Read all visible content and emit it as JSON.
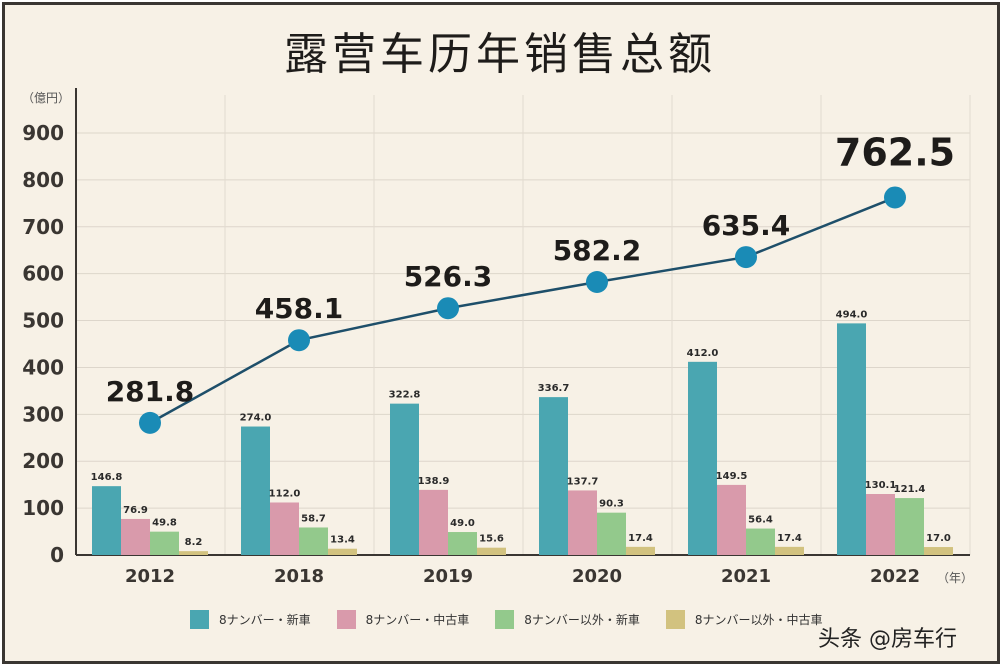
{
  "chart_data": {
    "type": "bar",
    "title": "露营车历年销售总额",
    "ylabel": "（億円）",
    "xlabel": "（年）",
    "ylim": [
      0,
      900
    ],
    "yticks": [
      0,
      100,
      200,
      300,
      400,
      500,
      600,
      700,
      800,
      900
    ],
    "grid": true,
    "legend_placement": "bottom",
    "categories": [
      "2012",
      "2018",
      "2019",
      "2020",
      "2021",
      "2022"
    ],
    "series": [
      {
        "name": "8ナンバー・新車",
        "color": "#4aa6b1",
        "values": [
          146.8,
          274.0,
          322.8,
          336.7,
          412.0,
          494.0
        ]
      },
      {
        "name": "8ナンバー・中古車",
        "color": "#d99aab",
        "values": [
          76.9,
          112.0,
          138.9,
          137.7,
          149.5,
          130.1
        ]
      },
      {
        "name": "8ナンバー以外・新車",
        "color": "#93c98c",
        "values": [
          49.8,
          58.7,
          49.0,
          90.3,
          56.4,
          121.4
        ]
      },
      {
        "name": "8ナンバー以外・中古車",
        "color": "#d2c27f",
        "values": [
          8.2,
          13.4,
          15.6,
          17.4,
          17.4,
          17.0
        ]
      }
    ],
    "total_line": {
      "type": "line",
      "color": "#1e4f6a",
      "marker_color": "#1a8bb6",
      "values": [
        281.8,
        458.1,
        526.3,
        582.2,
        635.4,
        762.5
      ]
    }
  },
  "watermark": "头条 @房车行"
}
